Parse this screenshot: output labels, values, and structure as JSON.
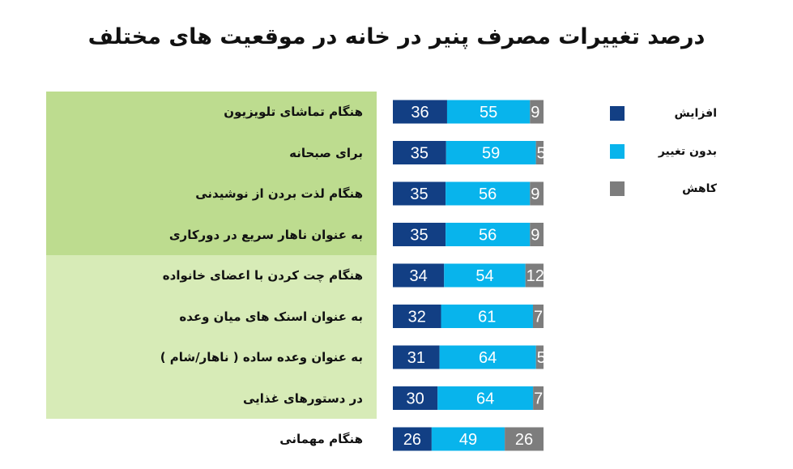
{
  "chart_data": {
    "type": "bar",
    "stacked": true,
    "orientation": "horizontal",
    "title": "درصد تغییرات مصرف پنیر در خانه در موقعیت های مختلف",
    "categories": [
      "هنگام تماشای تلویزیون",
      "برای صبحانه",
      "هنگام لذت بردن از نوشیدنی",
      "به عنوان ناهار سریع در دورکاری",
      "هنگام چت کردن با اعضای خانواده",
      "به عنوان اسنک های میان وعده",
      "به عنوان وعده ساده ( ناهار/شام )",
      "در دستورهای غذایی",
      "هنگام مهمانی"
    ],
    "series": [
      {
        "name": "افزایش",
        "color": "#123f84",
        "values": [
          36,
          35,
          35,
          35,
          34,
          32,
          31,
          30,
          26
        ]
      },
      {
        "name": "بدون تغییر",
        "color": "#08b4ec",
        "values": [
          55,
          59,
          56,
          56,
          54,
          61,
          64,
          64,
          49
        ]
      },
      {
        "name": "کاهش",
        "color": "#7d7d7d",
        "values": [
          9,
          5,
          9,
          9,
          12,
          7,
          5,
          7,
          26
        ]
      }
    ],
    "legend_position": "right",
    "grid": false,
    "band_colors": [
      "#bddc8f",
      "#d7ebb7"
    ]
  }
}
